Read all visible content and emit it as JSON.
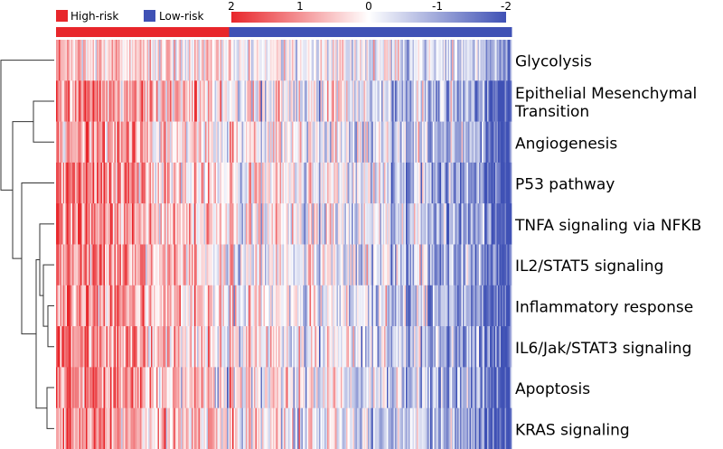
{
  "chart_data": {
    "type": "heatmap",
    "title": "",
    "rows": [
      "Glycolysis",
      "Epithelial Mesenchymal Transition",
      "Angiogenesis",
      "P53 pathway",
      "TNFA signaling via NFKB",
      "IL2/STAT5 signaling",
      "Inflammatory response",
      "IL6/Jak/STAT3 signaling",
      "Apoptosis",
      "KRAS signaling"
    ],
    "row_label_lines": [
      [
        "Glycolysis"
      ],
      [
        "Epithelial Mesenchymal",
        "Transition"
      ],
      [
        "Angiogenesis"
      ],
      [
        "P53 pathway"
      ],
      [
        "TNFA signaling via NFKB"
      ],
      [
        "IL2/STAT5 signaling"
      ],
      [
        "Inflammatory response"
      ],
      [
        "IL6/Jak/STAT3 signaling"
      ],
      [
        "Apoptosis"
      ],
      [
        "KRAS signaling"
      ]
    ],
    "groups": [
      {
        "name": "High-risk",
        "color": "#e8262b",
        "fraction": 0.38
      },
      {
        "name": "Low-risk",
        "color": "#3f51b5",
        "fraction": 0.62
      }
    ],
    "value_range": [
      2,
      -2
    ],
    "colorbar_ticks": [
      "2",
      "1",
      "0",
      "-1",
      "-2"
    ],
    "colors": {
      "high": "#e8262b",
      "mid": "#ffffff",
      "low": "#3f51b5"
    },
    "dendrogram": "hierarchical clustering of rows (left)"
  }
}
